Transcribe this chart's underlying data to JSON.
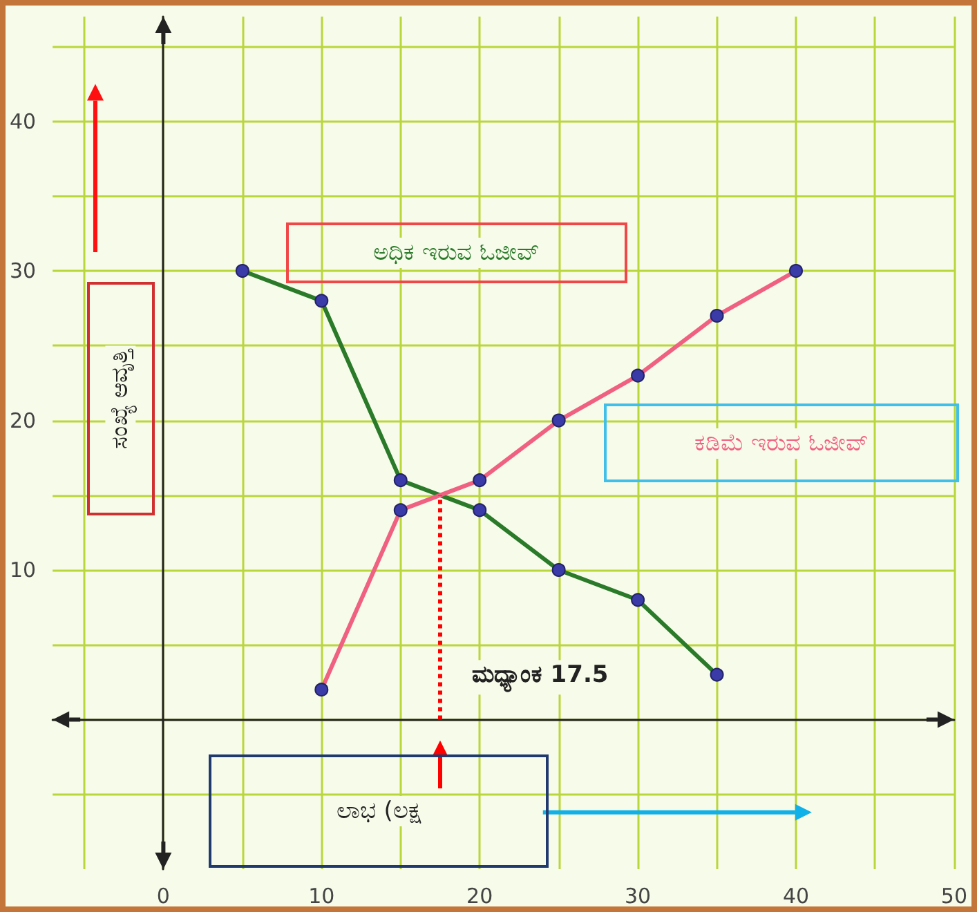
{
  "chart_data": {
    "type": "line",
    "xlabel": "ಲಾಭ (ಲಕ್ಷ",
    "ylabel": "ಸಂಖ್ಯೆ ಆವೃತ್ತಿ",
    "series": [
      {
        "name": "ಅಧಿಕ ಇರುವ ಓಜೀವ್",
        "color": "#2a7a2a",
        "x": [
          5,
          10,
          15,
          20,
          25,
          30,
          35
        ],
        "values": [
          30,
          28,
          16,
          14,
          10,
          8,
          3
        ]
      },
      {
        "name": "ಕಡಿಮೆ ಇರುವ ಓಜೀವ್",
        "color": "#f06080",
        "x": [
          10,
          15,
          20,
          25,
          30,
          35,
          40
        ],
        "values": [
          2,
          14,
          16,
          20,
          23,
          27,
          30
        ]
      }
    ],
    "xlim": [
      -7,
      50
    ],
    "ylim": [
      -10,
      47
    ],
    "xticks": [
      {
        "value": -5,
        "label": null
      },
      0,
      {
        "value": 5,
        "label": null
      },
      10,
      {
        "value": 15,
        "label": null
      },
      20,
      {
        "value": 25,
        "label": null
      },
      30,
      {
        "value": 35,
        "label": null
      },
      40,
      {
        "value": 45,
        "label": null
      },
      50
    ],
    "yticks": [
      {
        "value": -5,
        "label": null
      },
      {
        "value": 0,
        "label": null
      },
      {
        "value": 5,
        "label": null
      },
      10,
      {
        "value": 15,
        "label": null
      },
      20,
      {
        "value": 25,
        "label": null
      },
      30,
      {
        "value": 35,
        "label": null
      },
      40,
      {
        "value": 45,
        "label": null
      }
    ],
    "grid": true,
    "marker": "circle",
    "ref_lines": [
      {
        "axis": "x",
        "value": 17.5,
        "label": "ಮಧ್ಯಾಂಕ 17.5",
        "color": "#ff0000",
        "line_style": "dotted"
      }
    ]
  }
}
